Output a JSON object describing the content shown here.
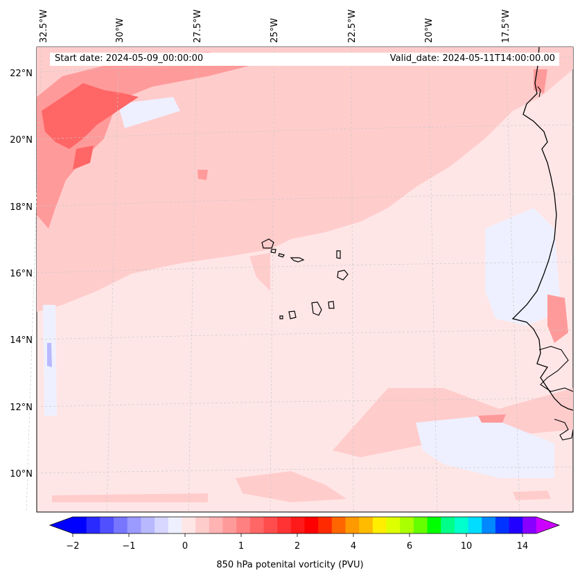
{
  "header": {
    "start_date": "Start date: 2024-05-09_00:00:00",
    "valid_date": "Valid_date: 2024-05-11T14:00:00.00"
  },
  "axes": {
    "lon_labels": [
      "32.5°W",
      "30°W",
      "27.5°W",
      "25°W",
      "22.5°W",
      "20°W",
      "17.5°W"
    ],
    "lat_labels": [
      "22°N",
      "20°N",
      "18°N",
      "16°N",
      "14°N",
      "12°N",
      "10°N"
    ]
  },
  "colorbar": {
    "label": "850 hPa potenital vorticity (PVU)",
    "ticks": [
      "−2",
      "−1",
      "0",
      "1",
      "2",
      "4",
      "6",
      "10",
      "14"
    ],
    "colors": [
      "#0000ff",
      "#2a2aff",
      "#5050ff",
      "#7676ff",
      "#9a9aff",
      "#b8b8ff",
      "#d6d6ff",
      "#eef0ff",
      "#ffe6e6",
      "#ffcccc",
      "#ffb3b3",
      "#ff9a9a",
      "#ff8080",
      "#ff6666",
      "#ff4d4d",
      "#ff3333",
      "#ff1a1a",
      "#ff0000",
      "#ff2a00",
      "#ff6600",
      "#ff9900",
      "#ffbb00",
      "#ffee00",
      "#ddff00",
      "#aaff00",
      "#66ff00",
      "#00ff00",
      "#00ff88",
      "#00ffcc",
      "#00ddff",
      "#0088ff",
      "#0033ff",
      "#2200ff",
      "#8800ff"
    ],
    "extend_low": "#0000ff",
    "extend_high": "#cc00ff"
  },
  "colors": {
    "background_field": "#ffe6e6",
    "pv_low": "#ffcccc",
    "pv_mid": "#ff9a9a",
    "pv_high": "#ff6666",
    "pv_neg": "#eef0ff",
    "pv_neg2": "#b8b8ff",
    "coast": "#000000"
  }
}
